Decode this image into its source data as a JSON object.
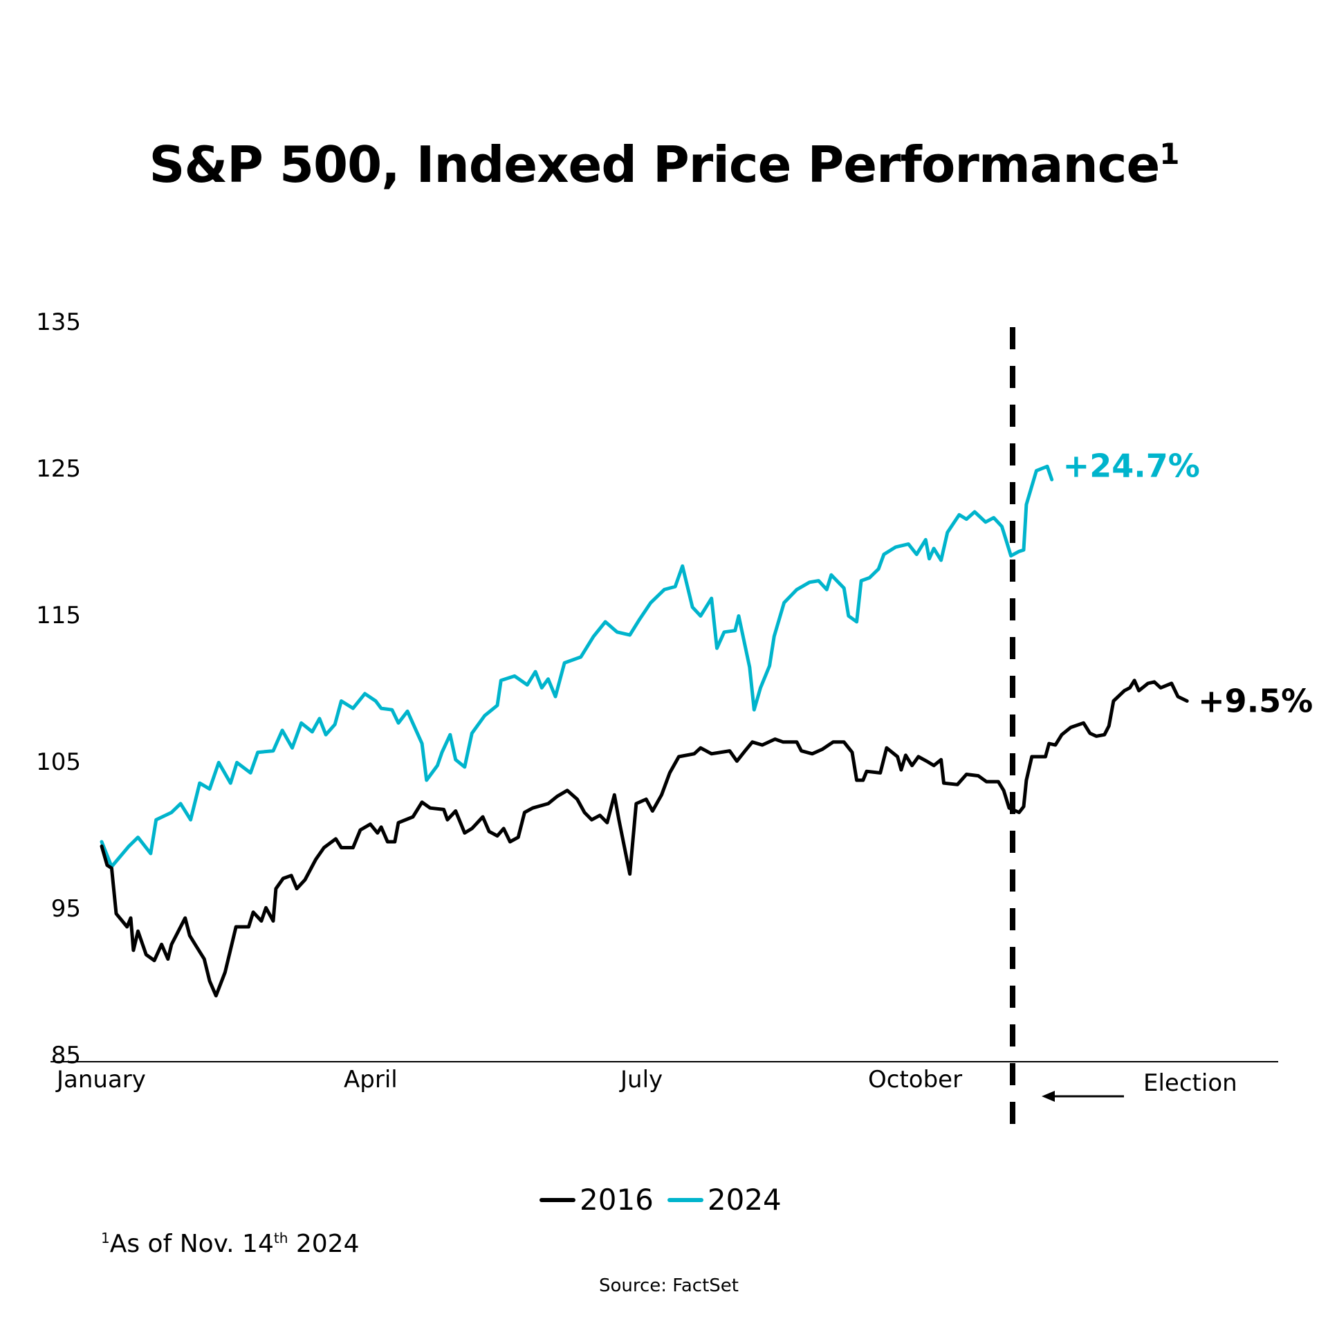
{
  "title": {
    "text": "S&P 500, Indexed Price Performance",
    "superscript": "1"
  },
  "legend": [
    {
      "label": "2016",
      "color": "#000000"
    },
    {
      "label": "2024",
      "color": "#00b4cc"
    }
  ],
  "footnote": {
    "marker": "1",
    "text_before": "As of Nov. 14",
    "ordinal": "th",
    "text_after": " 2024"
  },
  "source": "Source: FactSet",
  "chart_data": {
    "type": "line",
    "title": "S&P 500, Indexed Price Performance",
    "xlabel": "",
    "ylabel": "",
    "ylim": [
      85,
      135
    ],
    "yticks": [
      135,
      125,
      115,
      105,
      95,
      85
    ],
    "x_unit": "months since January 1",
    "xlim": [
      0,
      12.4
    ],
    "xticks": [
      {
        "label": "January",
        "x": 0
      },
      {
        "label": "April",
        "x": 3
      },
      {
        "label": "July",
        "x": 6
      },
      {
        "label": "October",
        "x": 9
      }
    ],
    "grid": false,
    "legend_position": "bottom-center",
    "annotations": [
      {
        "type": "vline",
        "x": 10.16,
        "label": "Election",
        "style": "dashed"
      },
      {
        "type": "end-label",
        "series": "2024",
        "text": "+24.7%"
      },
      {
        "type": "end-label",
        "series": "2016",
        "text": "+9.5%"
      }
    ],
    "series": [
      {
        "name": "2024",
        "color": "#00b4cc",
        "x": [
          0,
          0.11,
          0.3,
          0.4,
          0.54,
          0.6,
          0.77,
          0.87,
          0.98,
          1.08,
          1.19,
          1.29,
          1.42,
          1.49,
          1.64,
          1.72,
          1.89,
          1.99,
          2.1,
          2.2,
          2.32,
          2.4,
          2.47,
          2.57,
          2.64,
          2.77,
          2.9,
          3.02,
          3.08,
          3.2,
          3.27,
          3.37,
          3.53,
          3.58,
          3.7,
          3.75,
          3.84,
          3.9,
          4.0,
          4.08,
          4.22,
          4.36,
          4.4,
          4.55,
          4.69,
          4.78,
          4.85,
          4.92,
          5.0,
          5.1,
          5.28,
          5.42,
          5.55,
          5.68,
          5.82,
          5.92,
          6.05,
          6.2,
          6.32,
          6.4,
          6.51,
          6.6,
          6.72,
          6.78,
          6.86,
          6.98,
          7.02,
          7.14,
          7.19,
          7.26,
          7.36,
          7.41,
          7.52,
          7.66,
          7.8,
          7.9,
          7.99,
          8.04,
          8.18,
          8.23,
          8.32,
          8.37,
          8.46,
          8.56,
          8.62,
          8.75,
          8.89,
          8.98,
          9.08,
          9.12,
          9.17,
          9.25,
          9.32,
          9.45,
          9.53,
          9.62,
          9.74,
          9.83,
          9.92,
          10.02,
          10.11,
          10.16,
          10.19,
          10.3,
          10.42,
          10.47
        ],
        "values": [
          100,
          98.3,
          99.7,
          100.3,
          99.2,
          101.5,
          102,
          102.6,
          101.5,
          104,
          103.6,
          105.4,
          104,
          105.4,
          104.7,
          106.1,
          106.2,
          107.6,
          106.4,
          108.1,
          107.5,
          108.4,
          107.3,
          108,
          109.6,
          109.1,
          110.1,
          109.6,
          109.1,
          109,
          108.1,
          108.9,
          106.7,
          104.2,
          105.2,
          106.1,
          107.3,
          105.6,
          105.1,
          107.4,
          108.6,
          109.3,
          111,
          111.3,
          110.7,
          111.6,
          110.5,
          111.1,
          109.9,
          112.2,
          112.6,
          114,
          115,
          114.3,
          114.1,
          115.1,
          116.3,
          117.2,
          117.4,
          118.8,
          116,
          115.4,
          116.6,
          113.2,
          114.3,
          114.4,
          115.4,
          111.9,
          109,
          110.5,
          112,
          114,
          116.3,
          117.2,
          117.7,
          117.8,
          117.2,
          118.2,
          117.3,
          115.4,
          115,
          117.8,
          118,
          118.6,
          119.6,
          120.1,
          120.3,
          119.6,
          120.6,
          119.3,
          120,
          119.2,
          121.1,
          122.3,
          122,
          122.5,
          121.8,
          122.1,
          121.5,
          119.5,
          119.8,
          119.9,
          123,
          125.3,
          125.6,
          124.7
        ]
      },
      {
        "name": "2016",
        "color": "#000000",
        "x": [
          0,
          0.06,
          0.11,
          0.16,
          0.28,
          0.32,
          0.35,
          0.4,
          0.49,
          0.58,
          0.66,
          0.73,
          0.77,
          0.92,
          0.97,
          1.04,
          1.13,
          1.19,
          1.26,
          1.36,
          1.48,
          1.62,
          1.67,
          1.76,
          1.81,
          1.89,
          1.92,
          2.0,
          2.09,
          2.15,
          2.24,
          2.36,
          2.45,
          2.58,
          2.64,
          2.77,
          2.85,
          2.96,
          3.04,
          3.08,
          3.15,
          3.23,
          3.27,
          3.43,
          3.53,
          3.62,
          3.77,
          3.81,
          3.9,
          4.0,
          4.08,
          4.2,
          4.27,
          4.36,
          4.43,
          4.5,
          4.59,
          4.66,
          4.75,
          4.92,
          5.02,
          5.13,
          5.24,
          5.32,
          5.4,
          5.49,
          5.57,
          5.65,
          5.7,
          5.82,
          5.89,
          6.0,
          6.07,
          6.17,
          6.26,
          6.36,
          6.53,
          6.6,
          6.72,
          6.92,
          7.0,
          7.09,
          7.17,
          7.28,
          7.42,
          7.51,
          7.66,
          7.71,
          7.83,
          7.94,
          8.06,
          8.18,
          8.27,
          8.32,
          8.39,
          8.43,
          8.58,
          8.65,
          8.77,
          8.81,
          8.86,
          8.93,
          9.0,
          9.09,
          9.17,
          9.25,
          9.28,
          9.43,
          9.53,
          9.66,
          9.75,
          9.88,
          9.94,
          10.0,
          10.11,
          10.16,
          10.19,
          10.25,
          10.4,
          10.44,
          10.51,
          10.58,
          10.68,
          10.82,
          10.89,
          10.96,
          11.05,
          11.1,
          11.15,
          11.27,
          11.33,
          11.38,
          11.43,
          11.53,
          11.6,
          11.67,
          11.79,
          11.86,
          11.96
        ],
        "values": [
          99.7,
          98.4,
          98.2,
          95.1,
          94.2,
          94.8,
          92.6,
          93.9,
          92.3,
          91.9,
          93,
          92,
          93,
          94.8,
          93.6,
          92.9,
          92,
          90.5,
          89.5,
          91.1,
          94.2,
          94.2,
          95.2,
          94.6,
          95.5,
          94.6,
          96.8,
          97.5,
          97.7,
          96.8,
          97.4,
          98.8,
          99.6,
          100.2,
          99.6,
          99.6,
          100.8,
          101.2,
          100.6,
          101,
          100,
          100,
          101.3,
          101.7,
          102.7,
          102.3,
          102.2,
          101.5,
          102.1,
          100.6,
          100.9,
          101.7,
          100.7,
          100.4,
          100.9,
          100,
          100.3,
          102,
          102.3,
          102.6,
          103.1,
          103.5,
          102.9,
          102,
          101.5,
          101.8,
          101.3,
          103.2,
          101.5,
          97.8,
          102.6,
          102.9,
          102.1,
          103.2,
          104.7,
          105.8,
          106,
          106.4,
          106,
          106.2,
          105.5,
          106.2,
          106.8,
          106.6,
          107,
          106.8,
          106.8,
          106.2,
          106,
          106.3,
          106.8,
          106.8,
          106.1,
          104.2,
          104.2,
          104.8,
          104.7,
          106.4,
          105.8,
          104.9,
          105.9,
          105.2,
          105.8,
          105.5,
          105.2,
          105.6,
          104,
          103.9,
          104.6,
          104.5,
          104.1,
          104.1,
          103.5,
          102.3,
          102,
          102.4,
          104.2,
          105.8,
          105.8,
          106.7,
          106.6,
          107.3,
          107.8,
          108.1,
          107.4,
          107.2,
          107.3,
          107.9,
          109.6,
          110.3,
          110.5,
          111,
          110.3,
          110.8,
          110.9,
          110.5,
          110.8,
          109.9,
          109.6
        ]
      }
    ]
  }
}
